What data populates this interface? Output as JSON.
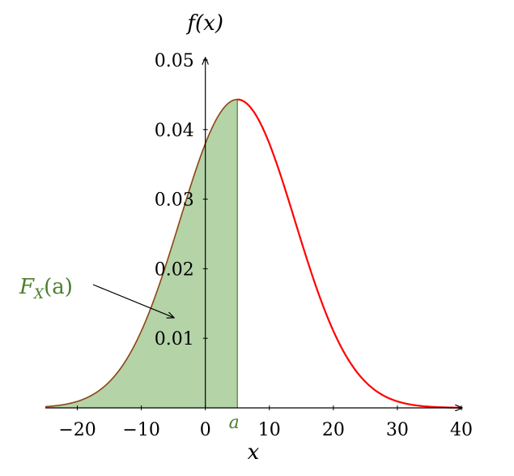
{
  "chart_data": {
    "type": "area",
    "distribution": "normal",
    "mean": 5,
    "std": 9,
    "xlim": [
      -25,
      40
    ],
    "ylim": [
      0,
      0.05
    ],
    "x_ticks": [
      -20,
      -10,
      0,
      10,
      20,
      30,
      40
    ],
    "x_tick_labels": [
      "−20",
      "−10",
      "0",
      "10",
      "20",
      "30",
      "40"
    ],
    "y_ticks": [
      0.01,
      0.02,
      0.03,
      0.04,
      0.05
    ],
    "y_tick_labels": [
      "0.01",
      "0.02",
      "0.03",
      "0.04",
      "0.05"
    ],
    "xlabel": "x",
    "ylabel": "f(x)",
    "shade_to": 5,
    "marker_label": "a",
    "annotation": {
      "main": "F",
      "sub": "X",
      "arg": "(a)",
      "arrow_to": [
        -5,
        0.013
      ]
    },
    "grid": false,
    "colors": {
      "curve": "#ff0000",
      "shade": "#6aa84f",
      "shade_edge": "#8b4513",
      "annotation": "#4a7f2c",
      "axis": "#000000"
    }
  }
}
